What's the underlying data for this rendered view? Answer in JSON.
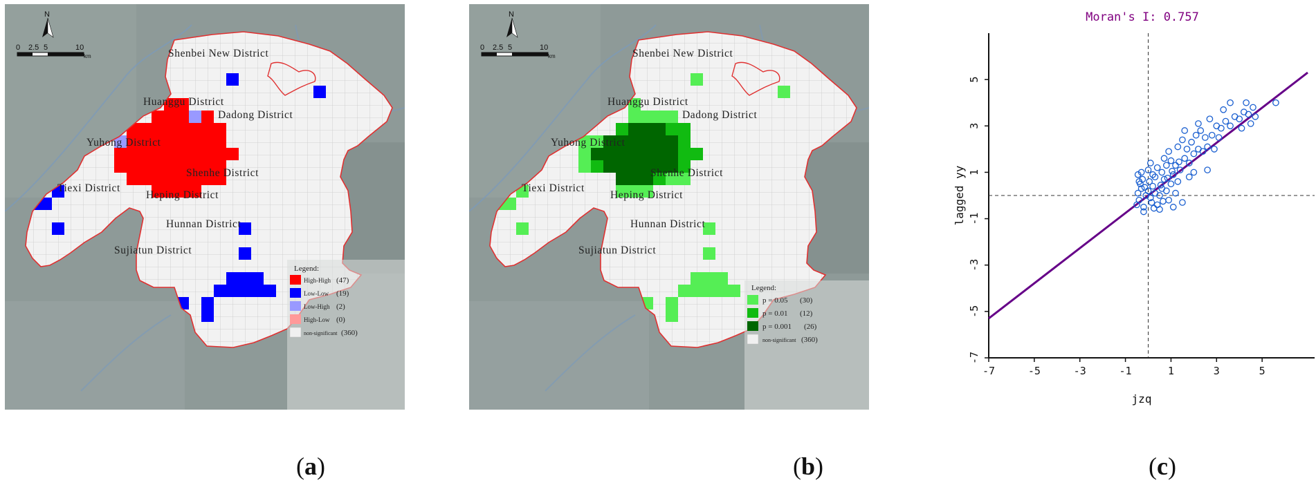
{
  "figure": {
    "captions": [
      "(a)",
      "(b)",
      "(c)"
    ],
    "caption_letters": [
      "a",
      "b",
      "c"
    ]
  },
  "maps": {
    "north_label": "N",
    "scale_ticks": [
      "0",
      "2.5",
      "5",
      "10"
    ],
    "scale_unit": "km",
    "districts": [
      {
        "id": "shenbei",
        "label": "Shenbei New District"
      },
      {
        "id": "huanggu",
        "label": "Huanggu District"
      },
      {
        "id": "dadong",
        "label": "Dadong District"
      },
      {
        "id": "yuhong",
        "label": "Yuhong District"
      },
      {
        "id": "shenhe",
        "label": "Shenhe District"
      },
      {
        "id": "tiexi",
        "label": "Tiexi District"
      },
      {
        "id": "heping",
        "label": "Heping District"
      },
      {
        "id": "hunnan",
        "label": "Hunnan District"
      },
      {
        "id": "sujiatun",
        "label": "Sujiatun District"
      }
    ],
    "panel_a": {
      "legend_title": "Legend:",
      "legend": [
        {
          "label": "High-High",
          "count": "(47)",
          "color": "#ff0000"
        },
        {
          "label": "Low-Low",
          "count": "(19)",
          "color": "#0000ff"
        },
        {
          "label": "Low-High",
          "count": "(2)",
          "color": "#9999ff"
        },
        {
          "label": "High-Low",
          "count": "(0)",
          "color": "#ff9999"
        },
        {
          "label": "non-significant",
          "count": "(360)",
          "color": "#f0f0f0"
        }
      ]
    },
    "panel_b": {
      "legend_title": "Legend:",
      "legend": [
        {
          "label": "p = 0.05",
          "count": "(30)",
          "color": "#55ee55"
        },
        {
          "label": "p = 0.01",
          "count": "(12)",
          "color": "#11bb11"
        },
        {
          "label": "p = 0.001",
          "count": "(26)",
          "color": "#006600"
        },
        {
          "label": "non-significant",
          "count": "(360)",
          "color": "#f0f0f0"
        }
      ]
    },
    "colors": {
      "boundary": "#e03030",
      "grid_fill": "#f2f2f2",
      "grid_line": "#c8c8c8",
      "background": "#8a9694"
    }
  },
  "chart_data": {
    "type": "scatter",
    "title": "Moran's I: 0.757",
    "xlabel": "jzq",
    "ylabel": "lagged yy",
    "xlim": [
      -7,
      7
    ],
    "ylim": [
      -7,
      7
    ],
    "xticks": [
      "-7",
      "-5",
      "-3",
      "-1",
      "1",
      "3",
      "5"
    ],
    "yticks": [
      "-7",
      "-5",
      "-3",
      "-1",
      "1",
      "3",
      "5"
    ],
    "regression_slope": 0.757,
    "colors": {
      "title": "#800080",
      "line": "#660088",
      "points": "#1a5fd0"
    },
    "points": [
      [
        -0.5,
        -0.4
      ],
      [
        -0.4,
        -0.2
      ],
      [
        -0.45,
        0.1
      ],
      [
        -0.3,
        0.3
      ],
      [
        -0.2,
        -0.5
      ],
      [
        -0.1,
        0.0
      ],
      [
        0.0,
        0.2
      ],
      [
        0.1,
        -0.1
      ],
      [
        -0.35,
        0.5
      ],
      [
        -0.25,
        0.7
      ],
      [
        0.05,
        0.6
      ],
      [
        0.2,
        0.4
      ],
      [
        0.3,
        0.1
      ],
      [
        0.15,
        -0.3
      ],
      [
        0.4,
        -0.4
      ],
      [
        0.5,
        0.0
      ],
      [
        0.6,
        0.3
      ],
      [
        0.7,
        0.7
      ],
      [
        0.8,
        0.2
      ],
      [
        0.9,
        -0.2
      ],
      [
        1.0,
        0.5
      ],
      [
        1.1,
        0.9
      ],
      [
        1.2,
        0.1
      ],
      [
        1.3,
        0.6
      ],
      [
        -0.45,
        0.9
      ],
      [
        -0.3,
        1.0
      ],
      [
        0.0,
        1.1
      ],
      [
        0.2,
        0.9
      ],
      [
        0.4,
        1.2
      ],
      [
        0.6,
        1.0
      ],
      [
        0.8,
        1.3
      ],
      [
        1.0,
        1.5
      ],
      [
        1.2,
        1.3
      ],
      [
        1.4,
        1.1
      ],
      [
        1.6,
        1.6
      ],
      [
        1.8,
        1.4
      ],
      [
        2.0,
        1.8
      ],
      [
        2.2,
        2.0
      ],
      [
        2.4,
        1.9
      ],
      [
        2.6,
        2.1
      ],
      [
        1.5,
        2.4
      ],
      [
        1.7,
        2.0
      ],
      [
        1.9,
        2.3
      ],
      [
        2.1,
        2.6
      ],
      [
        2.3,
        2.8
      ],
      [
        2.5,
        2.5
      ],
      [
        2.8,
        2.6
      ],
      [
        3.0,
        3.0
      ],
      [
        3.2,
        2.9
      ],
      [
        3.4,
        3.2
      ],
      [
        3.6,
        3.0
      ],
      [
        3.8,
        3.4
      ],
      [
        4.0,
        3.3
      ],
      [
        4.2,
        3.6
      ],
      [
        4.4,
        3.5
      ],
      [
        4.6,
        3.8
      ],
      [
        3.6,
        4.0
      ],
      [
        4.3,
        4.0
      ],
      [
        4.5,
        3.1
      ],
      [
        5.6,
        4.0
      ],
      [
        2.6,
        1.1
      ],
      [
        1.5,
        -0.3
      ],
      [
        1.1,
        -0.5
      ],
      [
        0.5,
        -0.6
      ],
      [
        -0.2,
        -0.7
      ],
      [
        0.3,
        0.8
      ],
      [
        0.7,
        1.6
      ],
      [
        0.9,
        1.9
      ],
      [
        1.3,
        2.1
      ],
      [
        1.6,
        2.8
      ],
      [
        2.9,
        2.0
      ],
      [
        3.1,
        2.5
      ],
      [
        2.0,
        1.0
      ],
      [
        1.8,
        0.8
      ],
      [
        0.1,
        1.4
      ],
      [
        -0.4,
        0.6
      ],
      [
        0.55,
        0.45
      ],
      [
        0.85,
        0.75
      ],
      [
        1.05,
        1.05
      ],
      [
        1.35,
        1.45
      ],
      [
        2.2,
        3.1
      ],
      [
        2.7,
        3.3
      ],
      [
        3.3,
        3.7
      ],
      [
        4.1,
        2.9
      ],
      [
        4.7,
        3.4
      ],
      [
        0.25,
        -0.55
      ],
      [
        -0.15,
        0.35
      ],
      [
        0.65,
        -0.25
      ]
    ]
  }
}
